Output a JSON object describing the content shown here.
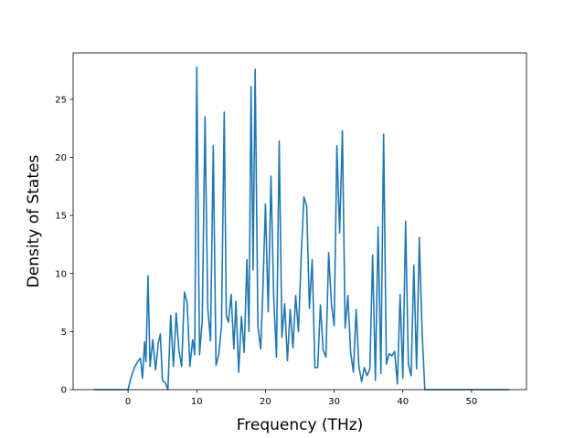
{
  "chart_data": {
    "type": "line",
    "title": "",
    "xlabel": "Frequency (THz)",
    "ylabel": "Density of States",
    "xlim": [
      -8,
      58
    ],
    "ylim": [
      0,
      29
    ],
    "xticks": [
      0,
      10,
      20,
      30,
      40,
      50
    ],
    "yticks": [
      0,
      5,
      10,
      15,
      20,
      25
    ],
    "grid": false,
    "series_color": "#1f77b4",
    "series": [
      {
        "x": [
          -5.0,
          -4.5,
          -4.0,
          -3.5,
          -3.0,
          -2.5,
          -2.0,
          -1.5,
          -1.0,
          -0.5,
          0.0,
          0.5,
          1.0,
          1.5,
          1.8,
          2.1,
          2.4,
          2.6,
          2.9,
          3.2,
          3.6,
          4.0,
          4.4,
          4.7,
          5.0,
          5.4,
          5.8,
          6.2,
          6.6,
          7.0,
          7.4,
          7.8,
          8.2,
          8.6,
          9.0,
          9.4,
          9.7,
          10.0,
          10.4,
          10.8,
          11.2,
          11.6,
          12.0,
          12.4,
          12.8,
          13.2,
          13.6,
          14.0,
          14.3,
          14.6,
          15.0,
          15.4,
          15.7,
          16.1,
          16.5,
          16.9,
          17.3,
          17.6,
          17.9,
          18.2,
          18.5,
          18.9,
          19.3,
          19.6,
          20.0,
          20.4,
          20.8,
          21.2,
          21.6,
          22.0,
          22.4,
          22.8,
          23.2,
          23.6,
          24.0,
          24.4,
          24.8,
          25.2,
          25.6,
          26.0,
          26.4,
          26.8,
          27.2,
          27.6,
          28.0,
          28.4,
          28.8,
          29.2,
          29.6,
          30.0,
          30.4,
          30.8,
          31.2,
          31.6,
          32.0,
          32.4,
          32.8,
          33.2,
          33.6,
          34.0,
          34.4,
          34.8,
          35.2,
          35.6,
          36.0,
          36.4,
          36.8,
          37.2,
          37.6,
          38.0,
          38.4,
          38.8,
          39.2,
          39.6,
          40.0,
          40.4,
          40.8,
          41.2,
          41.6,
          42.0,
          42.4,
          42.8,
          43.2,
          43.6,
          44.0,
          45.0,
          47.0,
          50.0,
          53.0,
          55.5
        ],
        "values": [
          0,
          0,
          0,
          0,
          0,
          0,
          0,
          0,
          0,
          0,
          0,
          1.2,
          2.0,
          2.5,
          2.7,
          1.0,
          4.1,
          2.4,
          9.8,
          2.0,
          4.3,
          1.7,
          4.0,
          4.8,
          0.8,
          0.6,
          0,
          6.4,
          2.0,
          6.6,
          3.4,
          2.0,
          8.4,
          7.5,
          2.0,
          4.3,
          3.0,
          27.8,
          3.0,
          6.0,
          23.5,
          7.0,
          4.2,
          21.0,
          2.1,
          3.0,
          5.5,
          23.9,
          6.4,
          5.8,
          8.2,
          3.5,
          7.6,
          1.5,
          6.3,
          3.2,
          11.2,
          5.0,
          26.1,
          10.3,
          27.6,
          5.5,
          3.5,
          8.2,
          16.0,
          6.7,
          18.4,
          8.0,
          2.8,
          21.4,
          4.5,
          7.4,
          2.5,
          6.9,
          3.6,
          8.1,
          5.0,
          11.4,
          16.6,
          15.8,
          7.0,
          11.2,
          1.9,
          1.9,
          7.3,
          3.4,
          2.8,
          11.8,
          7.4,
          5.5,
          21.0,
          13.5,
          22.3,
          5.3,
          8.1,
          3.2,
          1.5,
          6.9,
          2.0,
          0.7,
          1.9,
          1.2,
          1.8,
          11.6,
          0.8,
          14.0,
          1.4,
          22.0,
          2.2,
          3.1,
          2.9,
          3.3,
          0.5,
          8.2,
          1.0,
          14.5,
          2.2,
          1.2,
          10.7,
          1.8,
          13.1,
          5.0,
          0,
          0,
          0,
          0,
          0,
          0,
          0,
          0
        ]
      }
    ]
  }
}
